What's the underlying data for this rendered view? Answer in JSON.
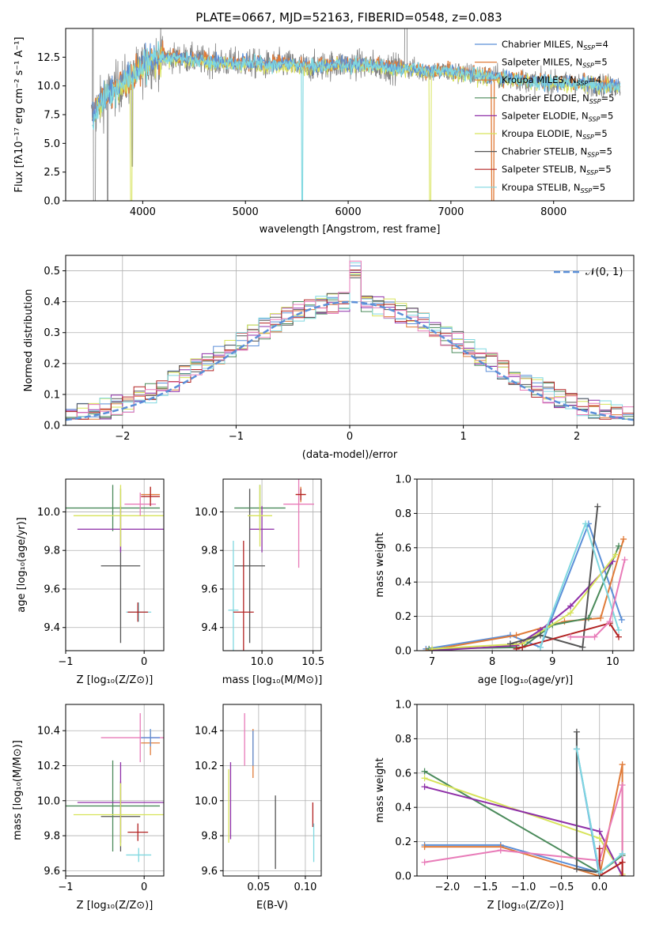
{
  "figure": {
    "title": "PLATE=0667, MJD=52163, FIBERID=0548, z=0.083"
  },
  "colors": {
    "chabrier_miles": "#5b8fd8",
    "salpeter_miles": "#e07b39",
    "kroupa_miles": "#e07b39",
    "chabrier_elodie": "#4a8a5a",
    "salpeter_elodie": "#8e2fa8",
    "kroupa_elodie": "#d7e35a",
    "chabrier_stelib": "#555555",
    "salpeter_stelib": "#b22222",
    "kroupa_stelib": "#7fd8e0",
    "pink": "#e87bb8",
    "data": "#7f7f7f",
    "gauss": "#5b8fd8"
  },
  "chart_data": [
    {
      "id": "spectrum",
      "type": "line",
      "title": "PLATE=0667, MJD=52163, FIBERID=0548, z=0.083",
      "xlabel": "wavelength [Angstrom, rest frame]",
      "ylabel": "Flux [fλ10⁻¹⁷ erg cm⁻² s⁻¹ A⁻¹]",
      "xlim": [
        3250,
        8780
      ],
      "ylim": [
        0,
        15
      ],
      "xticks": [
        "4000",
        "5000",
        "6000",
        "7000",
        "8000"
      ],
      "yticks": [
        "0.0",
        "2.5",
        "5.0",
        "7.5",
        "10.0",
        "12.5"
      ],
      "grid": false,
      "legend_position": "top-right",
      "legend": [
        {
          "text": "Chabrier MILES, N",
          "sub": "SSP",
          "suffix": "=4",
          "color": "#5b8fd8"
        },
        {
          "text": "Salpeter MILES, N",
          "sub": "SSP",
          "suffix": "=5",
          "color": "#e07b39"
        },
        {
          "text": "Kroupa MILES, N",
          "sub": "SSP",
          "suffix": "=4",
          "color": "#e07b39"
        },
        {
          "text": "Chabrier ELODIE, N",
          "sub": "SSP",
          "suffix": "=5",
          "color": "#4a8a5a"
        },
        {
          "text": "Salpeter ELODIE, N",
          "sub": "SSP",
          "suffix": "=5",
          "color": "#8e2fa8"
        },
        {
          "text": "Kroupa ELODIE, N",
          "sub": "SSP",
          "suffix": "=5",
          "color": "#d7e35a"
        },
        {
          "text": "Chabrier STELIB, N",
          "sub": "SSP",
          "suffix": "=5",
          "color": "#555555"
        },
        {
          "text": "Salpeter STELIB, N",
          "sub": "SSP",
          "suffix": "=5",
          "color": "#b22222"
        },
        {
          "text": "Kroupa STELIB, N",
          "sub": "SSP",
          "suffix": "=5",
          "color": "#7fd8e0"
        }
      ],
      "continuum": {
        "x": [
          3500,
          3600,
          3700,
          3800,
          3900,
          4000,
          4100,
          4200,
          4400,
          4600,
          4800,
          5000,
          5200,
          5400,
          5600,
          5800,
          6000,
          6200,
          6400,
          6600,
          6800,
          7000,
          7200,
          7400,
          7600,
          7800,
          8000,
          8200,
          8400,
          8600
        ],
        "y": [
          7.2,
          8.6,
          9.5,
          10.2,
          10.8,
          11.6,
          12.2,
          12.5,
          12.4,
          12.2,
          12.0,
          12.0,
          11.8,
          11.9,
          11.6,
          11.8,
          11.9,
          11.8,
          11.6,
          11.5,
          11.3,
          11.2,
          11.0,
          10.8,
          10.6,
          10.4,
          10.3,
          10.2,
          10.1,
          10.0
        ]
      }
    },
    {
      "id": "residuals",
      "type": "histogram",
      "xlabel": "(data-model)/error",
      "ylabel": "Normed distribution",
      "xlim": [
        -2.5,
        2.5
      ],
      "ylim": [
        0,
        0.55
      ],
      "xticks": [
        "−2",
        "−1",
        "0",
        "1",
        "2"
      ],
      "yticks": [
        "0.0",
        "0.1",
        "0.2",
        "0.3",
        "0.4",
        "0.5"
      ],
      "grid": true,
      "legend_position": "top-right",
      "legend": [
        {
          "text": "𝒩(0, 1)",
          "color": "#5b8fd8",
          "style": "dashed"
        }
      ],
      "bin_width": 0.1
    },
    {
      "id": "age_vs_Z",
      "type": "scatter",
      "xlabel": "Z [log₁₀(Z/Z⊙)]",
      "ylabel": "age  [log₁₀(age/yr)]",
      "xlim": [
        -1.0,
        0.25
      ],
      "ylim": [
        9.28,
        10.17
      ],
      "xticks": [
        "−1",
        "0"
      ],
      "yticks": [
        "9.4",
        "9.6",
        "9.8",
        "10.0"
      ],
      "grid": true,
      "points": [
        {
          "x": -0.3,
          "y": 9.72,
          "xerr": 0.25,
          "yerr": 0.4,
          "color": "#555555"
        },
        {
          "x": -0.4,
          "y": 10.02,
          "xerr": 0.6,
          "yerr": 0.12,
          "color": "#4a8a5a"
        },
        {
          "x": -0.3,
          "y": 9.91,
          "xerr": 0.55,
          "yerr": 0.12,
          "color": "#8e2fa8"
        },
        {
          "x": -0.3,
          "y": 9.98,
          "xerr": 0.6,
          "yerr": 0.16,
          "color": "#d7e35a"
        },
        {
          "x": -0.05,
          "y": 10.04,
          "xerr": 0.2,
          "yerr": 0.06,
          "color": "#e87bb8"
        },
        {
          "x": 0.08,
          "y": 10.09,
          "xerr": 0.12,
          "yerr": 0.04,
          "color": "#e07b39"
        },
        {
          "x": 0.08,
          "y": 10.08,
          "xerr": 0.12,
          "yerr": 0.05,
          "color": "#b22222"
        },
        {
          "x": -0.07,
          "y": 9.48,
          "xerr": 0.16,
          "yerr": 0.05,
          "color": "#7fd8e0"
        },
        {
          "x": -0.08,
          "y": 9.48,
          "xerr": 0.13,
          "yerr": 0.05,
          "color": "#b22222"
        }
      ]
    },
    {
      "id": "age_vs_mass",
      "type": "scatter",
      "xlabel": "mass [log₁₀(M/M⊙)]",
      "ylabel": "",
      "xlim": [
        9.62,
        10.58
      ],
      "ylim": [
        9.28,
        10.17
      ],
      "xticks": [
        "9.5",
        "10.0",
        "10.5"
      ],
      "yticks": [
        "9.4",
        "9.6",
        "9.8",
        "10.0"
      ],
      "grid": true,
      "points": [
        {
          "x": 9.88,
          "y": 9.72,
          "xerr": 0.15,
          "yerr": 0.4,
          "color": "#555555"
        },
        {
          "x": 9.98,
          "y": 10.02,
          "xerr": 0.25,
          "yerr": 0.12,
          "color": "#4a8a5a"
        },
        {
          "x": 10.0,
          "y": 9.91,
          "xerr": 0.12,
          "yerr": 0.12,
          "color": "#8e2fa8"
        },
        {
          "x": 9.98,
          "y": 9.98,
          "xerr": 0.12,
          "yerr": 0.16,
          "color": "#d7e35a"
        },
        {
          "x": 10.36,
          "y": 10.04,
          "xerr": 0.15,
          "yerr": 0.33,
          "color": "#e87bb8"
        },
        {
          "x": 10.38,
          "y": 10.09,
          "xerr": 0.05,
          "yerr": 0.04,
          "color": "#e07b39"
        },
        {
          "x": 10.38,
          "y": 10.09,
          "xerr": 0.05,
          "yerr": 0.03,
          "color": "#b22222"
        },
        {
          "x": 9.72,
          "y": 9.49,
          "xerr": 0.05,
          "yerr": 0.36,
          "color": "#7fd8e0"
        },
        {
          "x": 9.82,
          "y": 9.48,
          "xerr": 0.1,
          "yerr": 0.37,
          "color": "#b22222"
        }
      ]
    },
    {
      "id": "weight_vs_age",
      "type": "line",
      "xlabel": "age  [log₁₀(age/yr)]",
      "ylabel": "mass weight",
      "xlim": [
        6.75,
        10.35
      ],
      "ylim": [
        0,
        1.0
      ],
      "xticks": [
        "7",
        "8",
        "9",
        "10"
      ],
      "yticks": [
        "0.0",
        "0.2",
        "0.4",
        "0.6",
        "0.8",
        "1.0"
      ],
      "grid": true,
      "series": [
        {
          "color": "#5b8fd8",
          "x": [
            6.9,
            8.3,
            8.8,
            9.6,
            10.15
          ],
          "y": [
            0.01,
            0.09,
            0.02,
            0.74,
            0.18
          ]
        },
        {
          "color": "#e07b39",
          "x": [
            6.9,
            8.4,
            9.2,
            9.8,
            10.18
          ],
          "y": [
            0.0,
            0.09,
            0.17,
            0.19,
            0.65
          ]
        },
        {
          "color": "#4a8a5a",
          "x": [
            6.95,
            8.5,
            9.0,
            9.6,
            10.1
          ],
          "y": [
            0.01,
            0.02,
            0.15,
            0.19,
            0.61
          ]
        },
        {
          "color": "#8e2fa8",
          "x": [
            7.0,
            8.4,
            8.8,
            9.3,
            10.0
          ],
          "y": [
            0.0,
            0.03,
            0.12,
            0.26,
            0.52
          ]
        },
        {
          "color": "#d7e35a",
          "x": [
            7.0,
            8.5,
            8.9,
            9.3,
            10.05
          ],
          "y": [
            0.01,
            0.04,
            0.13,
            0.22,
            0.56
          ]
        },
        {
          "color": "#555555",
          "x": [
            8.3,
            8.8,
            9.5,
            9.75
          ],
          "y": [
            0.04,
            0.09,
            0.02,
            0.84
          ]
        },
        {
          "color": "#b22222",
          "x": [
            8.4,
            8.5,
            9.95,
            10.1
          ],
          "y": [
            0.01,
            0.02,
            0.16,
            0.08
          ]
        },
        {
          "color": "#7fd8e0",
          "x": [
            8.8,
            8.9,
            9.55,
            10.1
          ],
          "y": [
            0.02,
            0.13,
            0.74,
            0.12
          ]
        },
        {
          "color": "#e87bb8",
          "x": [
            9.3,
            9.7,
            9.95,
            10.2
          ],
          "y": [
            0.08,
            0.08,
            0.17,
            0.53
          ]
        }
      ]
    },
    {
      "id": "mass_vs_Z",
      "type": "scatter",
      "xlabel": "Z [log₁₀(Z/Z⊙)]",
      "ylabel": "mass [log₁₀(M/M⊙)]",
      "xlim": [
        -1.0,
        0.25
      ],
      "ylim": [
        9.57,
        10.55
      ],
      "xticks": [
        "−1",
        "0"
      ],
      "yticks": [
        "9.6",
        "9.8",
        "10.0",
        "10.2",
        "10.4"
      ],
      "grid": true,
      "points": [
        {
          "x": -0.3,
          "y": 9.91,
          "xerr": 0.25,
          "yerr": 0.2,
          "color": "#555555"
        },
        {
          "x": -0.4,
          "y": 9.97,
          "xerr": 0.6,
          "yerr": 0.26,
          "color": "#4a8a5a"
        },
        {
          "x": -0.3,
          "y": 9.99,
          "xerr": 0.55,
          "yerr": 0.23,
          "color": "#8e2fa8"
        },
        {
          "x": -0.3,
          "y": 9.92,
          "xerr": 0.6,
          "yerr": 0.18,
          "color": "#d7e35a"
        },
        {
          "x": -0.05,
          "y": 10.36,
          "xerr": 0.5,
          "yerr": 0.14,
          "color": "#e87bb8"
        },
        {
          "x": 0.08,
          "y": 10.33,
          "xerr": 0.12,
          "yerr": 0.07,
          "color": "#e07b39"
        },
        {
          "x": 0.08,
          "y": 10.36,
          "xerr": 0.12,
          "yerr": 0.05,
          "color": "#5b8fd8"
        },
        {
          "x": -0.07,
          "y": 9.69,
          "xerr": 0.16,
          "yerr": 0.04,
          "color": "#7fd8e0"
        },
        {
          "x": -0.08,
          "y": 9.82,
          "xerr": 0.13,
          "yerr": 0.05,
          "color": "#b22222"
        }
      ]
    },
    {
      "id": "mass_vs_EBV",
      "type": "scatter",
      "xlabel": "E(B-V)",
      "ylabel": "",
      "xlim": [
        0.012,
        0.117
      ],
      "ylim": [
        9.57,
        10.55
      ],
      "xticks": [
        "0.05",
        "0.10"
      ],
      "yticks": [
        "9.6",
        "9.8",
        "10.0",
        "10.2",
        "10.4"
      ],
      "grid": true,
      "points": [
        {
          "x": 0.018,
          "y": 9.97,
          "yerr": 0.21,
          "color": "#d7e35a"
        },
        {
          "x": 0.02,
          "y": 10.0,
          "yerr": 0.22,
          "color": "#8e2fa8"
        },
        {
          "x": 0.035,
          "y": 10.35,
          "yerr": 0.15,
          "color": "#e87bb8"
        },
        {
          "x": 0.044,
          "y": 10.27,
          "yerr": 0.14,
          "color": "#e07b39"
        },
        {
          "x": 0.044,
          "y": 10.3,
          "yerr": 0.1,
          "color": "#5b8fd8"
        },
        {
          "x": 0.068,
          "y": 9.82,
          "yerr": 0.21,
          "color": "#555555"
        },
        {
          "x": 0.108,
          "y": 9.92,
          "yerr": 0.07,
          "color": "#b22222"
        },
        {
          "x": 0.109,
          "y": 9.76,
          "yerr": 0.11,
          "color": "#7fd8e0"
        }
      ]
    },
    {
      "id": "weight_vs_Z",
      "type": "line",
      "xlabel": "Z [log₁₀(Z/Z⊙)]",
      "ylabel": "mass weight",
      "xlim": [
        -2.4,
        0.45
      ],
      "ylim": [
        0,
        1.0
      ],
      "xticks": [
        "−2.0",
        "−1.5",
        "−1.0",
        "−0.5",
        "0.0"
      ],
      "yticks": [
        "0.0",
        "0.2",
        "0.4",
        "0.6",
        "0.8",
        "1.0"
      ],
      "grid": true,
      "series": [
        {
          "color": "#4a8a5a",
          "x": [
            -2.3,
            0.0,
            0.3
          ],
          "y": [
            0.61,
            0.02,
            0.12
          ]
        },
        {
          "color": "#d7e35a",
          "x": [
            -2.3,
            0.0,
            0.3
          ],
          "y": [
            0.57,
            0.22,
            0.01
          ]
        },
        {
          "color": "#8e2fa8",
          "x": [
            -2.3,
            0.0,
            0.3
          ],
          "y": [
            0.52,
            0.26,
            0.0
          ]
        },
        {
          "color": "#5b8fd8",
          "x": [
            -2.3,
            -1.3,
            0.0,
            -0.3,
            0.0
          ],
          "y": [
            0.18,
            0.18,
            0.02,
            0.74,
            0.0
          ]
        },
        {
          "color": "#e07b39",
          "x": [
            -2.3,
            -1.3,
            0.0,
            0.3,
            0.3
          ],
          "y": [
            0.17,
            0.17,
            0.0,
            0.65,
            0.0
          ]
        },
        {
          "color": "#e87bb8",
          "x": [
            -2.3,
            -1.3,
            0.0,
            0.3,
            0.3
          ],
          "y": [
            0.08,
            0.15,
            0.09,
            0.53,
            0.0
          ]
        },
        {
          "color": "#555555",
          "x": [
            -0.3,
            -0.3,
            0.0
          ],
          "y": [
            0.84,
            0.04,
            0.02
          ]
        },
        {
          "color": "#b22222",
          "x": [
            0.0,
            0.0,
            0.3,
            0.3
          ],
          "y": [
            0.16,
            0.0,
            0.08,
            0.0
          ]
        },
        {
          "color": "#7fd8e0",
          "x": [
            -0.3,
            0.0,
            0.3
          ],
          "y": [
            0.74,
            0.02,
            0.13
          ]
        }
      ]
    }
  ]
}
